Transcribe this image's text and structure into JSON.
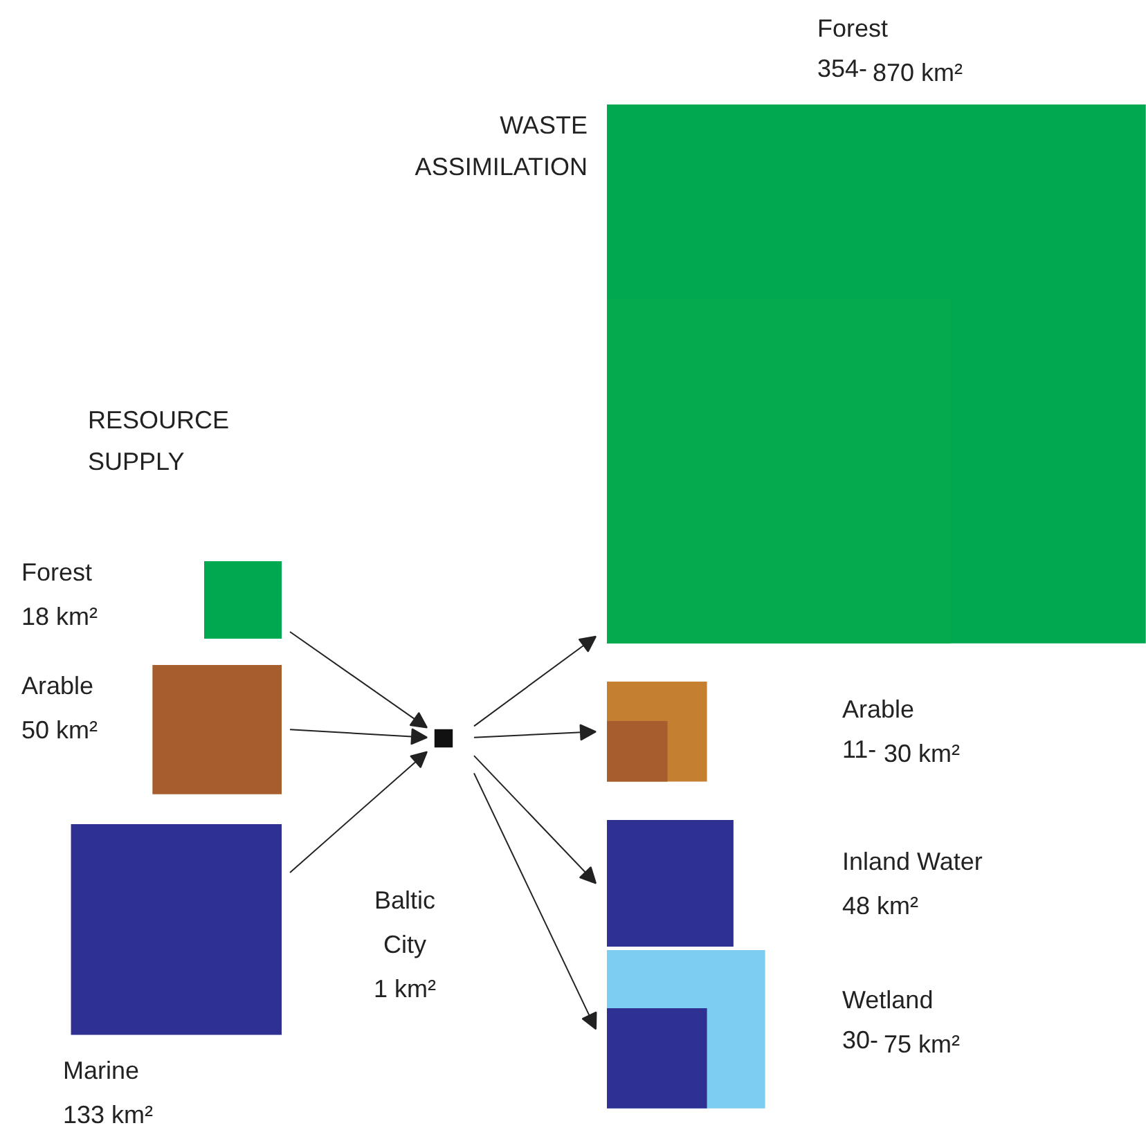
{
  "chart_data": {
    "type": "other",
    "categories": [
      "Forest",
      "Arable",
      "Marine",
      "Forest",
      "Arable",
      "Inland Water",
      "Wetland",
      "Baltic City"
    ],
    "series": [
      {
        "name": "RESOURCE SUPPLY",
        "values": [
          18,
          50,
          133,
          null,
          null,
          null,
          null,
          null
        ],
        "colors": [
          "#00a84f",
          "#a65e2e",
          "#2e3192",
          null,
          null,
          null,
          null,
          null
        ],
        "value_labels": [
          "18 km²",
          "50 km²",
          "133 km²",
          null,
          null,
          null,
          null,
          null
        ]
      },
      {
        "name": "WASTE ASSIMILATION",
        "values": [
          null,
          null,
          null,
          870,
          30,
          48,
          75,
          null
        ],
        "colors": [
          null,
          null,
          null,
          "#00a84f",
          "#c47f30",
          "#2e3192",
          "#7dcdf1",
          null
        ],
        "value_labels": [
          null,
          null,
          null,
          "870 km²",
          "30 km²",
          "48 km²",
          "75 km²",
          null
        ]
      },
      {
        "values": [
          null,
          null,
          null,
          354,
          11,
          null,
          30,
          null
        ],
        "colors": [
          null,
          null,
          null,
          "#04aa4d",
          "#a65e2e",
          null,
          "#2e3192",
          null
        ],
        "value_labels": [
          null,
          null,
          null,
          "354-",
          "11-",
          null,
          "30-",
          null
        ]
      },
      {
        "values": [
          null,
          null,
          null,
          null,
          null,
          null,
          null,
          1
        ],
        "colors": [
          null,
          null,
          null,
          null,
          null,
          null,
          null,
          "#111111"
        ],
        "value_labels": [
          null,
          null,
          null,
          null,
          null,
          null,
          null,
          "1 km²"
        ]
      }
    ]
  }
}
